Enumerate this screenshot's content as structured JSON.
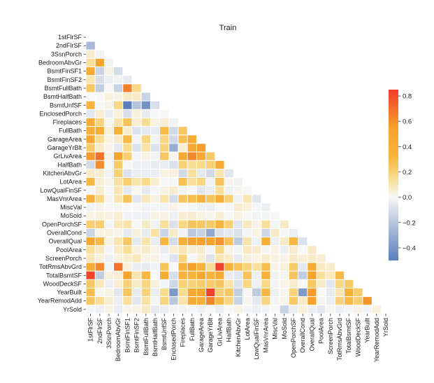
{
  "chart_data": {
    "type": "heatmap",
    "title": "Train",
    "xlabel": "",
    "ylabel": "",
    "mask": "upper-triangle",
    "variables": [
      "1stFlrSF",
      "2ndFlrSF",
      "3SsnPorch",
      "BedroomAbvGr",
      "BsmtFinSF1",
      "BsmtFinSF2",
      "BsmtFullBath",
      "BsmtHalfBath",
      "BsmtUnfSF",
      "EnclosedPorch",
      "Fireplaces",
      "FullBath",
      "GarageArea",
      "GarageYrBlt",
      "GrLivArea",
      "HalfBath",
      "KitchenAbvGr",
      "LotArea",
      "LowQualFinSF",
      "MasVnrArea",
      "MiscVal",
      "MoSold",
      "OpenPorchSF",
      "OverallCond",
      "OverallQual",
      "PoolArea",
      "ScreenPorch",
      "TotRmsAbvGrd",
      "TotalBsmtSF",
      "WoodDeckSF",
      "YearBuilt",
      "YearRemodAdd",
      "YrSold"
    ],
    "colorbar": {
      "range": [
        -0.5,
        0.85
      ],
      "ticks": [
        -0.4,
        -0.2,
        0.0,
        0.2,
        0.4,
        0.6,
        0.8
      ],
      "tick_labels": [
        "−0.4",
        "−0.2",
        "0.0",
        "0.2",
        "0.4",
        "0.6",
        "0.8"
      ]
    },
    "colormap": {
      "low": "#5b7fbd",
      "mid": "#f7f7f7",
      "high": "#f03a2a"
    },
    "values": {
      "2ndFlrSF": [
        -0.25
      ],
      "3SsnPorch": [
        0.06,
        -0.02
      ],
      "BedroomAbvGr": [
        0.13,
        0.5,
        -0.02
      ],
      "BsmtFinSF1": [
        0.45,
        -0.14,
        0.03,
        -0.11
      ],
      "BsmtFinSF2": [
        0.1,
        -0.1,
        -0.03,
        -0.02,
        -0.05
      ],
      "BsmtFullBath": [
        0.24,
        -0.17,
        0,
        -0.15,
        0.65,
        0.16
      ],
      "BsmtHalfBath": [
        0,
        0,
        0.04,
        0.02,
        0.07,
        0.07,
        -0.15
      ],
      "BsmtUnfSF": [
        0.32,
        0,
        0.02,
        0.17,
        -0.5,
        -0.21,
        -0.42,
        -0.1
      ],
      "EnclosedPorch": [
        -0.07,
        0.06,
        -0.04,
        0.04,
        -0.1,
        0.04,
        -0.05,
        0,
        0
      ],
      "Fireplaces": [
        0.41,
        0.19,
        0.01,
        0.11,
        0.26,
        0.05,
        0.14,
        0.03,
        0.05,
        -0.02
      ],
      "FullBath": [
        0.38,
        0.42,
        0.04,
        0.36,
        0.06,
        -0.08,
        -0.06,
        -0.05,
        0.29,
        -0.12,
        0.24
      ],
      "GarageArea": [
        0.49,
        0.14,
        0.03,
        0.07,
        0.3,
        -0.02,
        0.18,
        -0.02,
        0.18,
        -0.12,
        0.27,
        0.41
      ],
      "GarageYrBlt": [
        0.23,
        0.07,
        0.02,
        -0.06,
        0.15,
        -0.09,
        0.12,
        -0.08,
        0.19,
        -0.3,
        0.05,
        0.48,
        0.56
      ],
      "GrLivArea": [
        0.57,
        0.69,
        0.02,
        0.52,
        0.21,
        -0.01,
        0.03,
        -0.02,
        0.24,
        0.01,
        0.46,
        0.63,
        0.47,
        0.23
      ],
      "HalfBath": [
        -0.12,
        0.61,
        -0.0,
        0.23,
        0.0,
        -0.03,
        -0.03,
        -0.05,
        -0.04,
        -0.09,
        0.2,
        0.14,
        0.16,
        0.2,
        0.42
      ],
      "KitchenAbvGr": [
        0.07,
        0.06,
        -0.02,
        0.2,
        -0.08,
        -0.04,
        -0.04,
        -0.04,
        0.03,
        0.04,
        -0.12,
        0.13,
        -0.06,
        -0.12,
        0.1,
        -0.07
      ],
      "LotArea": [
        0.3,
        0.05,
        0.02,
        0.12,
        0.21,
        0.11,
        0.16,
        0.05,
        -0.0,
        -0.01,
        0.27,
        0.13,
        0.18,
        -0.02,
        0.26,
        0.01,
        -0.02
      ],
      "LowQualFinSF": [
        -0.01,
        0.06,
        -0.0,
        0.1,
        -0.06,
        0.01,
        -0.05,
        -0.01,
        0.03,
        0.06,
        -0.02,
        -0.0,
        -0.07,
        -0.04,
        0.13,
        -0.03,
        0.01,
        0
      ],
      "MasVnrArea": [
        0.34,
        0.17,
        0.01,
        0.1,
        0.26,
        -0.07,
        0.09,
        0.03,
        0.11,
        -0.11,
        0.25,
        0.28,
        0.37,
        0.25,
        0.39,
        0.2,
        -0.02,
        0.1,
        -0.07
      ],
      "MiscVal": [
        -0.02,
        0.02,
        0.0,
        0.01,
        0.0,
        0.0,
        -0.02,
        -0.01,
        -0.02,
        0.02,
        0.0,
        -0.01,
        -0.03,
        -0.03,
        -0.0,
        -0.01,
        0.06,
        0.04,
        -0.0,
        -0.03
      ],
      "MoSold": [
        0.03,
        0.04,
        0.03,
        0.05,
        -0.02,
        -0.02,
        -0.03,
        0.03,
        0.03,
        -0.03,
        0.05,
        0.06,
        0.03,
        0.01,
        0.05,
        0.0,
        0.03,
        0.0,
        -0.02,
        -0.01,
        -0.0
      ],
      "OpenPorchSF": [
        0.21,
        0.21,
        -0.01,
        0.09,
        0.11,
        0.0,
        0.07,
        -0.02,
        0.13,
        -0.09,
        0.17,
        0.26,
        0.24,
        0.23,
        0.33,
        0.2,
        -0.07,
        0.08,
        0.02,
        0.13,
        -0.01,
        0.07
      ],
      "OverallCond": [
        -0.14,
        0.03,
        0.03,
        0.01,
        -0.05,
        0.04,
        -0.05,
        0.12,
        -0.14,
        0.07,
        -0.02,
        -0.19,
        -0.15,
        -0.32,
        -0.08,
        -0.06,
        -0.09,
        -0.01,
        0.03,
        -0.13,
        0.07,
        -0.0,
        -0.03
      ],
      "OverallQual": [
        0.48,
        0.3,
        0.03,
        0.1,
        0.24,
        -0.06,
        0.11,
        -0.04,
        0.31,
        -0.11,
        0.4,
        0.55,
        0.56,
        0.55,
        0.59,
        0.27,
        -0.18,
        0.11,
        -0.03,
        0.41,
        -0.03,
        0.07,
        0.31,
        -0.09
      ],
      "PoolArea": [
        0.13,
        0.08,
        -0.01,
        0.07,
        0.14,
        0.04,
        0.07,
        0.02,
        -0.04,
        0.05,
        0.1,
        0.05,
        0.06,
        -0.01,
        0.17,
        0.02,
        -0.01,
        0.08,
        0.06,
        0.01,
        0.03,
        -0.03,
        0.06,
        -0.0,
        0.07
      ],
      "ScreenPorch": [
        0.09,
        0.04,
        -0.03,
        0.04,
        0.06,
        0.09,
        0.02,
        0.03,
        -0.01,
        -0.08,
        0.18,
        -0.01,
        0.05,
        -0.08,
        0.1,
        0.07,
        -0.05,
        0.04,
        0.03,
        0.06,
        0.03,
        0.02,
        0.07,
        0.05,
        0.06,
        0.05
      ],
      "TotRmsAbvGrd": [
        0.41,
        0.62,
        -0.01,
        0.68,
        0.04,
        -0.04,
        -0.05,
        -0.02,
        0.25,
        0.0,
        0.33,
        0.55,
        0.34,
        0.14,
        0.83,
        0.34,
        0.26,
        0.19,
        0.13,
        0.28,
        0.02,
        0.04,
        0.23,
        -0.06,
        0.43,
        0.08,
        0.06
      ],
      "TotalBsmtSF": [
        0.82,
        -0.17,
        0.04,
        0.05,
        0.52,
        0.1,
        0.31,
        0.0,
        0.42,
        -0.1,
        0.34,
        0.32,
        0.49,
        0.32,
        0.45,
        -0.05,
        -0.07,
        0.26,
        -0.03,
        0.36,
        -0.02,
        0.01,
        0.25,
        -0.17,
        0.54,
        0.13,
        0.08,
        0.29
      ],
      "WoodDeckSF": [
        0.24,
        0.09,
        -0.03,
        0.05,
        0.2,
        0.07,
        0.18,
        0.04,
        -0.01,
        -0.13,
        0.2,
        0.19,
        0.22,
        0.22,
        0.25,
        0.11,
        -0.09,
        0.17,
        -0.03,
        0.16,
        -0.01,
        0.02,
        0.06,
        -0.0,
        0.24,
        0.07,
        -0.07,
        0.17,
        0.23
      ],
      "YearBuilt": [
        0.28,
        0.01,
        0.03,
        -0.07,
        0.25,
        -0.05,
        0.19,
        -0.04,
        0.15,
        -0.39,
        0.15,
        0.47,
        0.48,
        0.83,
        0.2,
        0.24,
        -0.17,
        0.01,
        -0.18,
        0.31,
        -0.03,
        0.01,
        0.19,
        -0.38,
        0.57,
        0.0,
        -0.05,
        0.1,
        0.39,
        0.22
      ],
      "YearRemodAdd": [
        0.24,
        0.14,
        0.05,
        -0.04,
        0.13,
        -0.07,
        0.12,
        -0.01,
        0.18,
        -0.19,
        0.11,
        0.44,
        0.37,
        0.64,
        0.29,
        0.18,
        -0.15,
        0.01,
        -0.06,
        0.18,
        -0.01,
        0.02,
        0.23,
        0.07,
        0.55,
        0.01,
        -0.04,
        0.19,
        0.29,
        0.21,
        0.59
      ],
      "YrSold": [
        -0.01,
        -0.03,
        0.02,
        -0.04,
        0.01,
        0.03,
        0.07,
        -0.05,
        -0.04,
        -0.01,
        -0.02,
        -0.01,
        -0.03,
        -0.0,
        -0.04,
        -0.0,
        0.03,
        -0.01,
        -0.03,
        -0.01,
        0.0,
        -0.15,
        -0.04,
        0.04,
        -0.03,
        -0.06,
        0.01,
        -0.03,
        -0.01,
        0.02,
        -0.01,
        0.04
      ]
    }
  }
}
